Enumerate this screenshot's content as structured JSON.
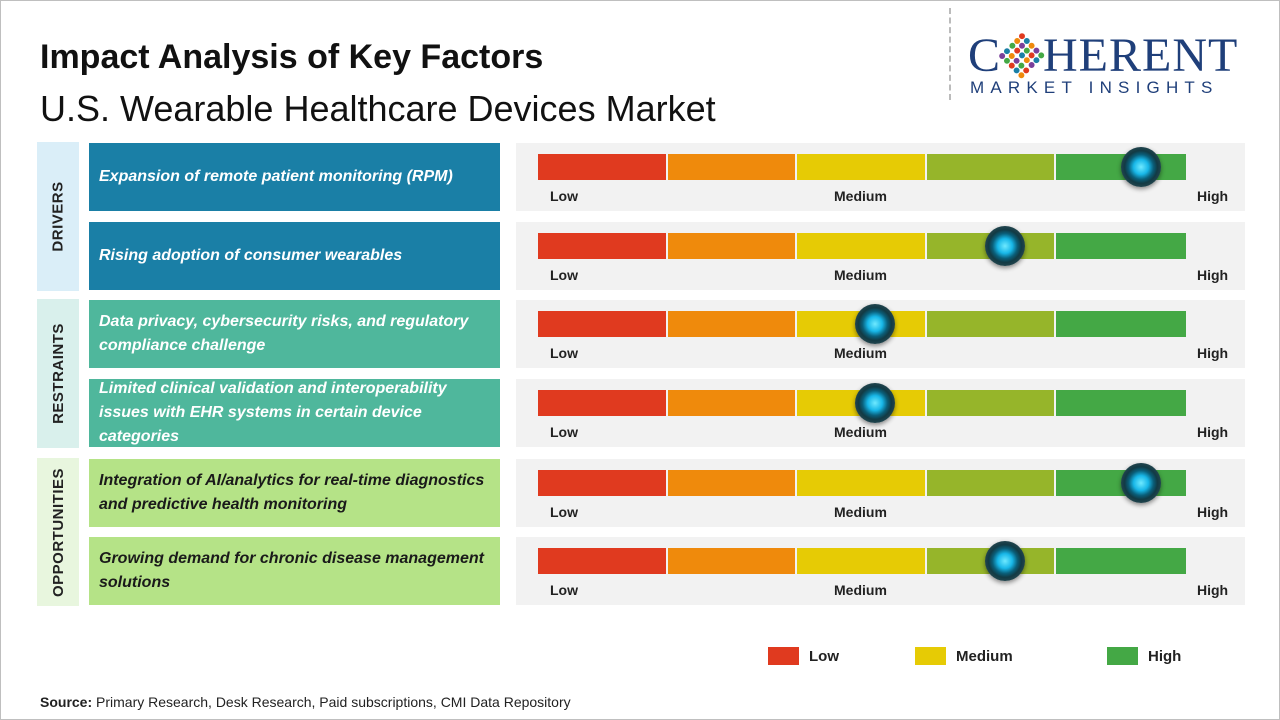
{
  "title": "Impact Analysis of Key Factors",
  "subtitle": "U.S. Wearable Healthcare Devices Market",
  "logo": {
    "main_left": "C",
    "main_right": "HERENT",
    "sub": "MARKET INSIGHTS"
  },
  "colors": {
    "segments": [
      "#e03a1f",
      "#ef8a0c",
      "#e6cb05",
      "#96b52a",
      "#44a845"
    ],
    "drivers_category_bg": "#daeef8",
    "drivers_factor_bg": "#1a7fa6",
    "restraints_category_bg": "#d9f0ec",
    "restraints_factor_bg": "#4fb79c",
    "opportunities_category_bg": "#e8f6de",
    "opportunities_factor_bg": "#b5e387"
  },
  "scale_labels": {
    "low": "Low",
    "medium": "Medium",
    "high": "High"
  },
  "chart_data": {
    "type": "table",
    "scale": [
      "Low",
      "Medium",
      "High"
    ],
    "categories": [
      {
        "name": "DRIVERS",
        "factors": [
          {
            "label": "Expansion of remote patient monitoring (RPM)",
            "impact": 0.93
          },
          {
            "label": "Rising adoption of consumer wearables",
            "impact": 0.72
          }
        ]
      },
      {
        "name": "RESTRAINTS",
        "factors": [
          {
            "label": "Data privacy, cybersecurity risks, and regulatory compliance challenge",
            "impact": 0.52
          },
          {
            "label": "Limited clinical validation and interoperability issues with EHR systems in certain device categories",
            "impact": 0.52
          }
        ]
      },
      {
        "name": "OPPORTUNITIES",
        "factors": [
          {
            "label": "Integration of AI/analytics for real-time diagnostics and predictive health monitoring",
            "impact": 0.93
          },
          {
            "label": "Growing demand for chronic disease management solutions",
            "impact": 0.72
          }
        ]
      }
    ]
  },
  "legend": [
    {
      "label": "Low",
      "color": "#e03a1f"
    },
    {
      "label": "Medium",
      "color": "#e6cb05"
    },
    {
      "label": "High",
      "color": "#44a845"
    }
  ],
  "source": {
    "label": "Source:",
    "text": " Primary Research, Desk Research, Paid subscriptions, CMI Data Repository"
  }
}
